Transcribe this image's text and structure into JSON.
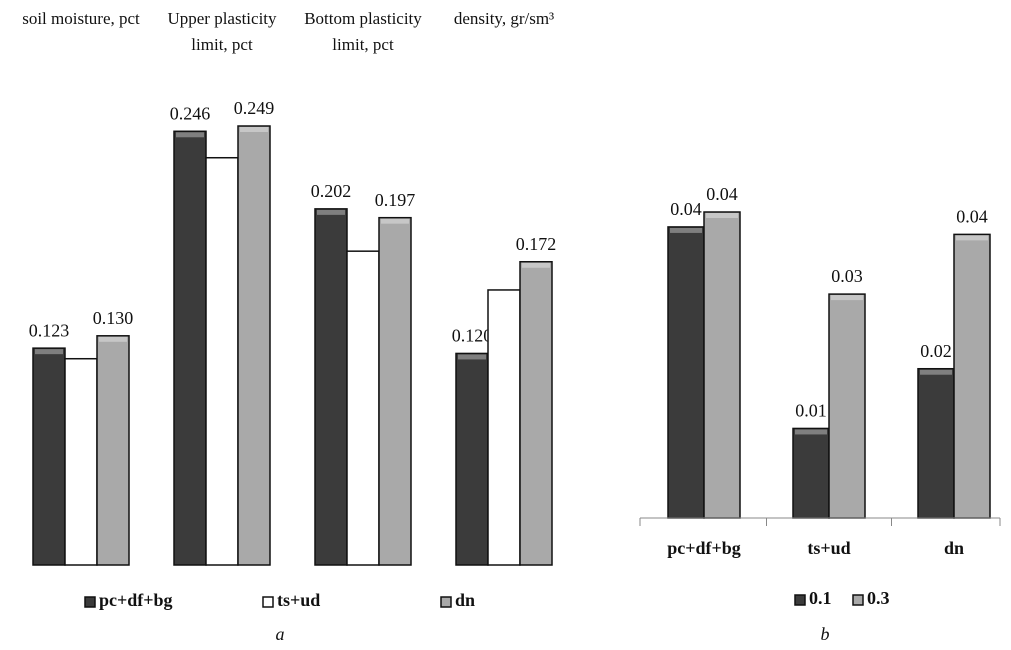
{
  "chart_data": [
    {
      "type": "bar",
      "panel_label": "a",
      "categories": [
        "soil moisture, pct",
        "Upper plasticity limit, pct",
        "Bottom plasticity limit, pct",
        "density, gr/sm³"
      ],
      "series": [
        {
          "name": "pc+df+bg",
          "color": "#3b3b3b",
          "values": [
            0.123,
            0.246,
            0.202,
            0.12
          ],
          "value_labels": [
            "0.123",
            "0.246",
            "0.202",
            "0.120"
          ]
        },
        {
          "name": "ts+ud",
          "color": "#ffffff",
          "values": [
            0.117,
            0.231,
            0.178,
            0.156
          ],
          "value_labels": [
            null,
            null,
            null,
            null
          ]
        },
        {
          "name": "dn",
          "color": "#a9a9a9",
          "values": [
            0.13,
            0.249,
            0.197,
            0.172
          ],
          "value_labels": [
            "0.130",
            "0.249",
            "0.197",
            "0.172"
          ]
        }
      ]
    },
    {
      "type": "bar",
      "panel_label": "b",
      "categories": [
        "pc+df+bg",
        "ts+ud",
        "dn"
      ],
      "series": [
        {
          "name": "0.1",
          "color": "#3b3b3b",
          "values": [
            0.039,
            0.012,
            0.02
          ],
          "value_labels": [
            "0.04",
            "0.01",
            "0.02"
          ]
        },
        {
          "name": "0.3",
          "color": "#a9a9a9",
          "values": [
            0.041,
            0.03,
            0.038
          ],
          "value_labels": [
            "0.04",
            "0.03",
            "0.04"
          ]
        }
      ]
    }
  ]
}
